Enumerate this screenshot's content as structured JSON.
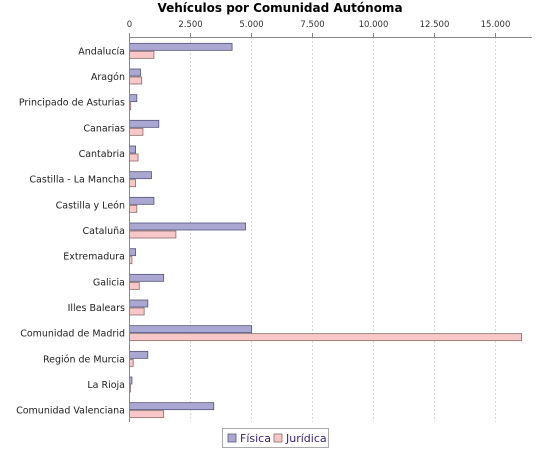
{
  "chart_data": {
    "type": "bar",
    "orientation": "horizontal",
    "title": "Vehículos por Comunidad Autónoma",
    "xlabel": "",
    "ylabel": "",
    "xlim": [
      0,
      16500
    ],
    "ticks": [
      0,
      2500,
      5000,
      7500,
      10000,
      12500,
      15000
    ],
    "tick_labels": [
      "0",
      "2.500",
      "5.000",
      "7.500",
      "10.000",
      "12.500",
      "15.000"
    ],
    "tick_position": "top",
    "grid": true,
    "legend_position": "bottom-center",
    "categories": [
      "Andalucía",
      "Aragón",
      "Principado de Asturias",
      "Canarias",
      "Cantabria",
      "Castilla - La Mancha",
      "Castilla y León",
      "Cataluña",
      "Extremadura",
      "Galicia",
      "Illes Balears",
      "Comunidad de Madrid",
      "Región de Murcia",
      "La Rioja",
      "Comunidad Valenciana"
    ],
    "series": [
      {
        "name": "Física",
        "color": "#aaa8d2",
        "stroke": "#55557a",
        "values": [
          4200,
          450,
          300,
          1200,
          250,
          900,
          1000,
          4750,
          250,
          1400,
          750,
          5000,
          750,
          100,
          3450
        ]
      },
      {
        "name": "Jurídica",
        "color": "#f8c8c8",
        "stroke": "#8a6a6a",
        "values": [
          1000,
          500,
          50,
          550,
          350,
          250,
          300,
          1900,
          100,
          400,
          600,
          16050,
          150,
          30,
          1400
        ]
      }
    ]
  }
}
